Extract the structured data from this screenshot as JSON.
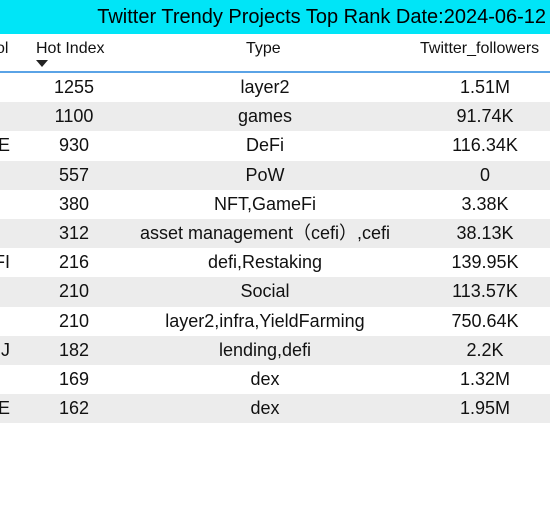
{
  "title": "Twitter Trendy Projects Top Rank Date:2024-06-12",
  "columns": {
    "symbol": "ol",
    "hot_index": "Hot Index",
    "type": "Type",
    "followers": "Twitter_followers"
  },
  "sort_icon": "sort-descending-icon",
  "rows": [
    {
      "sym": "",
      "hot": "1255",
      "type": "layer2",
      "followers": "1.51M"
    },
    {
      "sym": "",
      "hot": "1100",
      "type": "games",
      "followers": "91.74K"
    },
    {
      "sym": "E",
      "hot": "930",
      "type": "DeFi",
      "followers": "116.34K"
    },
    {
      "sym": "",
      "hot": "557",
      "type": "PoW",
      "followers": "0"
    },
    {
      "sym": "",
      "hot": "380",
      "type": "NFT,GameFi",
      "followers": "3.38K"
    },
    {
      "sym": "",
      "hot": "312",
      "type": "asset management（cefi）,cefi",
      "followers": "38.13K"
    },
    {
      "sym": "FI",
      "hot": "216",
      "type": "defi,Restaking",
      "followers": "139.95K"
    },
    {
      "sym": "",
      "hot": "210",
      "type": "Social",
      "followers": "113.57K"
    },
    {
      "sym": "",
      "hot": "210",
      "type": "layer2,infra,YieldFarming",
      "followers": "750.64K"
    },
    {
      "sym": "J",
      "hot": "182",
      "type": "lending,defi",
      "followers": "2.2K"
    },
    {
      "sym": "",
      "hot": "169",
      "type": "dex",
      "followers": "1.32M"
    },
    {
      "sym": "E",
      "hot": "162",
      "type": "dex",
      "followers": "1.95M"
    }
  ],
  "colors": {
    "title_bg": "#00e5f7",
    "header_rule": "#5aa3e6",
    "alt_row": "#ececec"
  }
}
